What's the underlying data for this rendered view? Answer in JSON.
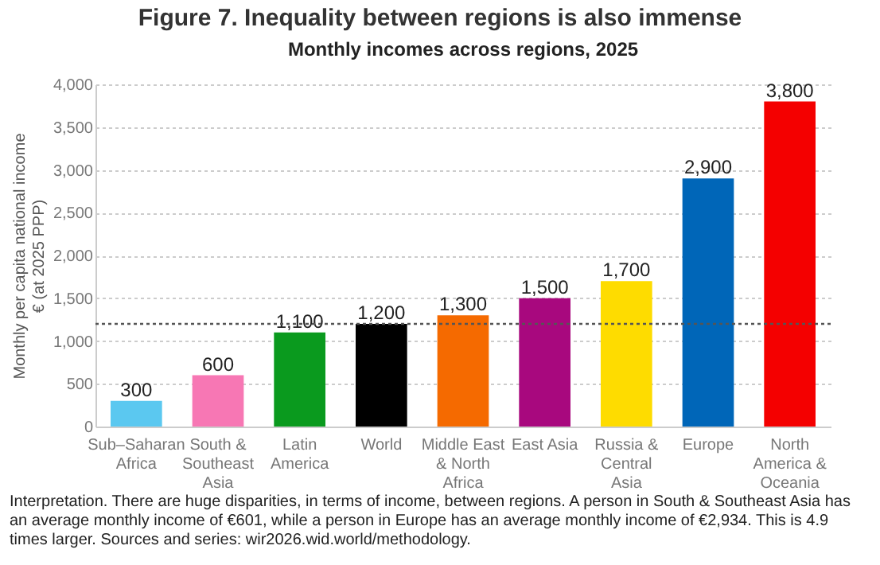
{
  "chart_data": {
    "type": "bar",
    "title": "Figure 7. Inequality between regions is also immense",
    "subtitle": "Monthly incomes across regions, 2025",
    "ylabel": "Monthly per capita national income € (at 2025 PPP)",
    "categories": [
      "Sub–Saharan Africa",
      "South & Southeast Asia",
      "Latin America",
      "World",
      "Middle East & North Africa",
      "East Asia",
      "Russia & Central Asia",
      "Europe",
      "North America & Oceania"
    ],
    "values": [
      300,
      600,
      1100,
      1200,
      1300,
      1500,
      1700,
      2900,
      3800
    ],
    "value_labels": [
      "300",
      "600",
      "1,100",
      "1,200",
      "1,300",
      "1,500",
      "1,700",
      "2,900",
      "3,800"
    ],
    "colors": [
      "#5bc8f0",
      "#f777b4",
      "#0a9a1e",
      "#000000",
      "#f56a00",
      "#a8087e",
      "#fedc00",
      "#0066b8",
      "#f40000"
    ],
    "ylim": [
      0,
      4000
    ],
    "yticks": [
      0,
      500,
      {
        "value": 1000,
        "label": "1,000"
      },
      {
        "value": 1500,
        "label": "1,500"
      },
      {
        "value": 2000,
        "label": "2,000"
      },
      {
        "value": 2500,
        "label": "2,500"
      },
      {
        "value": 3000,
        "label": "3,000"
      },
      {
        "value": 3500,
        "label": "3,500"
      },
      {
        "value": 4000,
        "label": "4,000"
      }
    ],
    "grid": "y",
    "ref_lines": [
      {
        "axis": "y",
        "value": 1200,
        "line_style": "dotted",
        "color": "#555555"
      }
    ],
    "annotations": [
      "Interpretation. There are huge disparities, in terms of income, between regions. A person in South & Southeast Asia has an average monthly income of €601, while a person in Europe has an average monthly income of €2,934. This is 4.9 times larger. Sources and series: wir2026.wid.world/methodology."
    ]
  }
}
